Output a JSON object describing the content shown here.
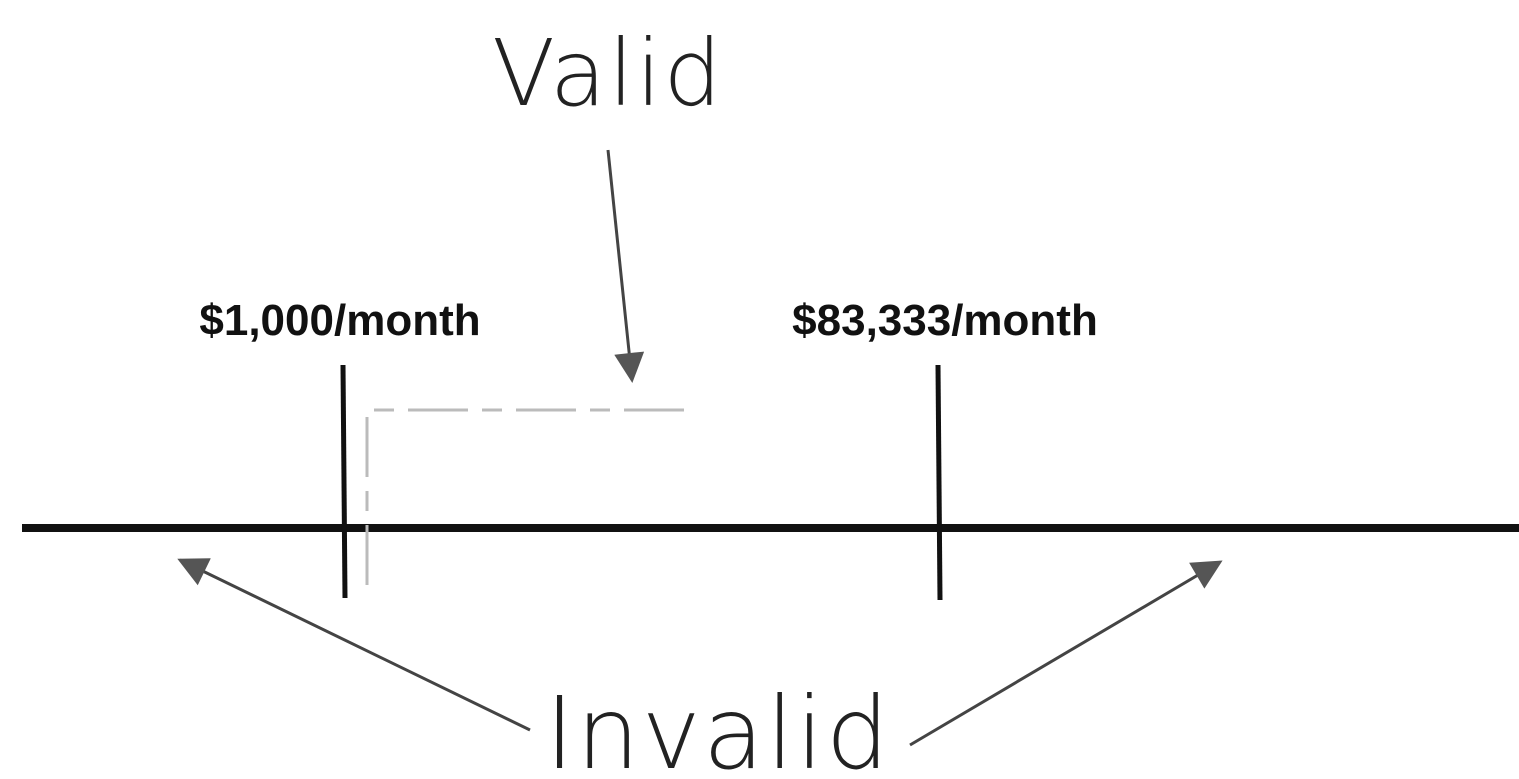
{
  "labels": {
    "valid": "Valid",
    "lower_bound": "$1,000/month",
    "upper_bound": "$83,333/month",
    "invalid": "Invalid"
  }
}
